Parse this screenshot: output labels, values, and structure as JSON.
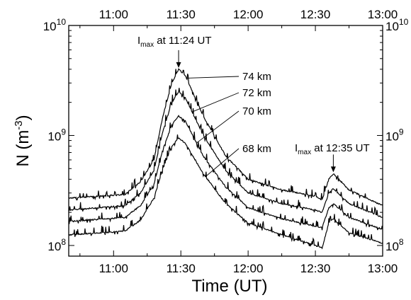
{
  "chart_data": {
    "type": "line",
    "title": "",
    "xlabel": "Time (UT)",
    "ylabel": "N (m",
    "ylabel_sup": "-3",
    "ylabel_close": ")",
    "x_unit": "minutes after 11:00",
    "x_range": [
      "10:40",
      "13:00"
    ],
    "y_scale": "log",
    "ylim": [
      80000000,
      10000000000
    ],
    "x_ticks": [
      {
        "t": 0,
        "label": "11:00"
      },
      {
        "t": 30,
        "label": "11:30"
      },
      {
        "t": 60,
        "label": "12:00"
      },
      {
        "t": 90,
        "label": "12:30"
      },
      {
        "t": 120,
        "label": "13:00"
      }
    ],
    "y_ticks": [
      {
        "value": 100000000,
        "base": "10",
        "exp": "8"
      },
      {
        "value": 1000000000,
        "base": "10",
        "exp": "9"
      },
      {
        "value": 10000000000,
        "base": "10",
        "exp": "10"
      }
    ],
    "series": [
      {
        "name": "74 km",
        "points": [
          [
            "10:40",
            270000000.0
          ],
          [
            "11:05",
            290000000.0
          ],
          [
            "11:12",
            380000000.0
          ],
          [
            "11:18",
            600000000.0
          ],
          [
            "11:22",
            1500000000.0
          ],
          [
            "11:26",
            3000000000.0
          ],
          [
            "11:29",
            4000000000.0
          ],
          [
            "11:32",
            3500000000.0
          ],
          [
            "11:40",
            1500000000.0
          ],
          [
            "11:50",
            650000000.0
          ],
          [
            "12:00",
            400000000.0
          ],
          [
            "12:15",
            320000000.0
          ],
          [
            "12:30",
            280000000.0
          ],
          [
            "12:33",
            260000000.0
          ],
          [
            "12:36",
            400000000.0
          ],
          [
            "12:38",
            450000000.0
          ],
          [
            "12:45",
            320000000.0
          ],
          [
            "13:00",
            230000000.0
          ]
        ]
      },
      {
        "name": "72 km",
        "points": [
          [
            "10:40",
            210000000.0
          ],
          [
            "11:05",
            230000000.0
          ],
          [
            "11:12",
            300000000.0
          ],
          [
            "11:18",
            480000000.0
          ],
          [
            "11:22",
            1100000000.0
          ],
          [
            "11:26",
            2000000000.0
          ],
          [
            "11:29",
            2500000000.0
          ],
          [
            "11:32",
            2200000000.0
          ],
          [
            "11:40",
            1000000000.0
          ],
          [
            "11:50",
            480000000.0
          ],
          [
            "12:00",
            300000000.0
          ],
          [
            "12:15",
            240000000.0
          ],
          [
            "12:30",
            210000000.0
          ],
          [
            "12:33",
            200000000.0
          ],
          [
            "12:36",
            300000000.0
          ],
          [
            "12:38",
            330000000.0
          ],
          [
            "12:45",
            240000000.0
          ],
          [
            "13:00",
            180000000.0
          ]
        ]
      },
      {
        "name": "70 km",
        "points": [
          [
            "10:40",
            165000000.0
          ],
          [
            "11:05",
            180000000.0
          ],
          [
            "11:12",
            230000000.0
          ],
          [
            "11:18",
            360000000.0
          ],
          [
            "11:22",
            750000000.0
          ],
          [
            "11:26",
            1250000000.0
          ],
          [
            "11:29",
            1500000000.0
          ],
          [
            "11:32",
            1350000000.0
          ],
          [
            "11:40",
            650000000.0
          ],
          [
            "11:50",
            340000000.0
          ],
          [
            "12:00",
            220000000.0
          ],
          [
            "12:15",
            175000000.0
          ],
          [
            "12:30",
            150000000.0
          ],
          [
            "12:33",
            145000000.0
          ],
          [
            "12:36",
            220000000.0
          ],
          [
            "12:38",
            240000000.0
          ],
          [
            "12:45",
            180000000.0
          ],
          [
            "13:00",
            140000000.0
          ]
        ]
      },
      {
        "name": "68 km",
        "points": [
          [
            "10:40",
            125000000.0
          ],
          [
            "11:05",
            135000000.0
          ],
          [
            "11:12",
            170000000.0
          ],
          [
            "11:18",
            270000000.0
          ],
          [
            "11:22",
            500000000.0
          ],
          [
            "11:26",
            800000000.0
          ],
          [
            "11:29",
            950000000.0
          ],
          [
            "11:32",
            850000000.0
          ],
          [
            "11:40",
            450000000.0
          ],
          [
            "11:50",
            240000000.0
          ],
          [
            "12:00",
            160000000.0
          ],
          [
            "12:15",
            125000000.0
          ],
          [
            "12:30",
            100000000.0
          ],
          [
            "12:33",
            95000000.0
          ],
          [
            "12:36",
            160000000.0
          ],
          [
            "12:38",
            175000000.0
          ],
          [
            "12:45",
            130000000.0
          ],
          [
            "13:00",
            105000000.0
          ]
        ]
      }
    ],
    "annotations": [
      {
        "prefix": "I",
        "sub": "max",
        "text": " at 11:24 UT",
        "at": [
          "11:29",
          4000000000.0
        ]
      },
      {
        "prefix": "I",
        "sub": "max",
        "text": " at 12:35 UT",
        "at": [
          "12:38",
          450000000.0
        ]
      }
    ],
    "grid": false,
    "legend": "none (series labelled by callouts)"
  }
}
